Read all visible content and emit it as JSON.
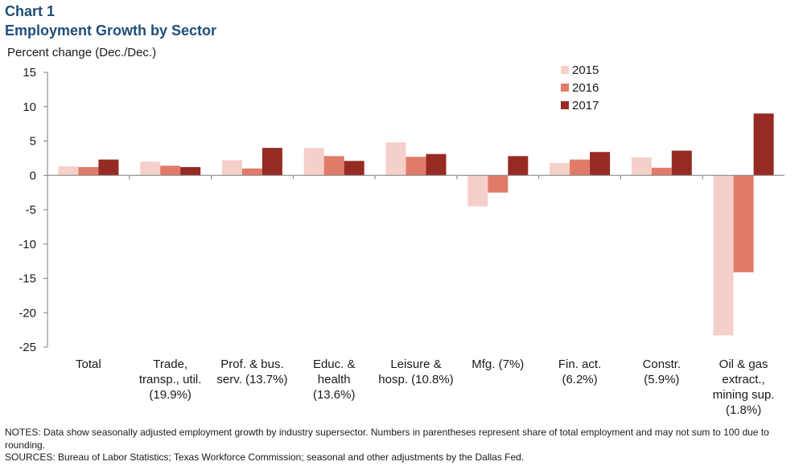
{
  "header": {
    "kicker": "Chart 1",
    "title": "Employment Growth by Sector",
    "unit": "Percent change (Dec./Dec.)"
  },
  "chart_data": {
    "type": "bar",
    "title": "Employment Growth by Sector",
    "ylabel": "Percent change (Dec./Dec.)",
    "xlabel": "",
    "ylim": [
      -25,
      15
    ],
    "yticks": [
      15,
      10,
      5,
      0,
      -5,
      -10,
      -15,
      -20,
      -25
    ],
    "grid": false,
    "legend_position": "top-right",
    "categories": [
      [
        "Total"
      ],
      [
        "Trade,",
        "transp., util.",
        "(19.9%)"
      ],
      [
        "Prof. & bus.",
        "serv. (13.7%)"
      ],
      [
        "Educ. &",
        "health",
        "(13.6%)"
      ],
      [
        "Leisure &",
        "hosp. (10.8%)"
      ],
      [
        "Mfg. (7%)"
      ],
      [
        "Fin. act.",
        "(6.2%)"
      ],
      [
        "Constr.",
        "(5.9%)"
      ],
      [
        "Oil & gas",
        "extract.,",
        "mining sup.",
        "(1.8%)"
      ]
    ],
    "series": [
      {
        "name": "2015",
        "color": "#f5d0ca",
        "values": [
          1.3,
          2.0,
          2.2,
          4.0,
          4.8,
          -4.5,
          1.8,
          2.6,
          -23.3
        ]
      },
      {
        "name": "2016",
        "color": "#e07b6a",
        "values": [
          1.2,
          1.4,
          1.0,
          2.8,
          2.7,
          -2.5,
          2.3,
          1.1,
          -14.1
        ]
      },
      {
        "name": "2017",
        "color": "#962b24",
        "values": [
          2.3,
          1.2,
          4.0,
          2.1,
          3.1,
          2.8,
          3.4,
          3.6,
          9.0
        ]
      }
    ]
  },
  "footer": {
    "notes": "NOTES: Data show seasonally adjusted employment growth by industry supersector. Numbers in parentheses represent share of total employment and may not sum to 100 due to rounding.",
    "sources": "SOURCES: Bureau of Labor Statistics; Texas Workforce Commission; seasonal and other adjustments by the Dallas Fed."
  }
}
